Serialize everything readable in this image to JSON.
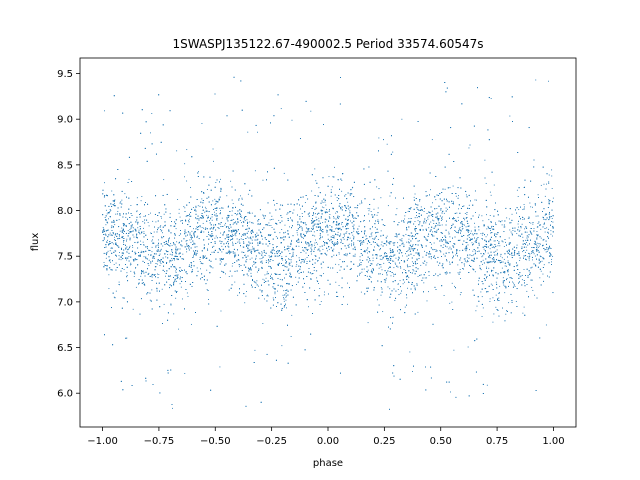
{
  "chart_data": {
    "type": "scatter",
    "title": "1SWASPJ135122.67-490002.5 Period 33574.60547s",
    "xlabel": "phase",
    "ylabel": "flux",
    "xlim": [
      -1.1,
      1.1
    ],
    "ylim": [
      5.63,
      9.67
    ],
    "xticks": [
      -1.0,
      -0.75,
      -0.5,
      -0.25,
      0.0,
      0.25,
      0.5,
      0.75,
      1.0
    ],
    "xtick_labels": [
      "−1.00",
      "−0.75",
      "−0.50",
      "−0.25",
      "0.00",
      "0.25",
      "0.50",
      "0.75",
      "1.00"
    ],
    "yticks": [
      6.0,
      6.5,
      7.0,
      7.5,
      8.0,
      8.5,
      9.0,
      9.5
    ],
    "ytick_labels": [
      "6.0",
      "6.5",
      "7.0",
      "7.5",
      "8.0",
      "8.5",
      "9.0",
      "9.5"
    ],
    "grid": false,
    "point_color": "#1f77b4",
    "series": [
      {
        "phase_range": [
          -1.0,
          1.0
        ],
        "flux_trend": {
          "phase": [
            -1.0,
            -0.9,
            -0.8,
            -0.7,
            -0.6,
            -0.5,
            -0.4,
            -0.3,
            -0.2,
            -0.1,
            0.0,
            0.1,
            0.2,
            0.3,
            0.4,
            0.5,
            0.6,
            0.7,
            0.8,
            0.9,
            1.0
          ],
          "flux": [
            7.75,
            7.65,
            7.52,
            7.5,
            7.68,
            7.78,
            7.66,
            7.5,
            7.47,
            7.62,
            7.8,
            7.72,
            7.55,
            7.48,
            7.62,
            7.75,
            7.7,
            7.52,
            7.48,
            7.62,
            7.78
          ]
        },
        "scatter_sigma": 0.28,
        "point_count": 9000
      }
    ]
  }
}
